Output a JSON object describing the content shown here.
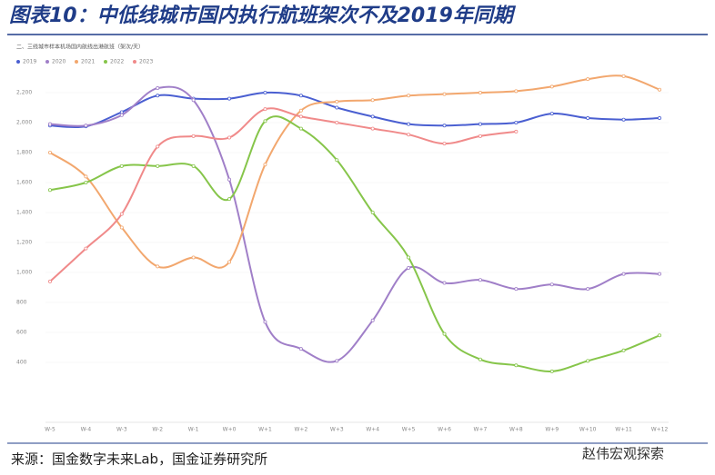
{
  "header": {
    "title": "图表10：中低线城市国内执行航班架次不及2019年同期"
  },
  "chart_data": {
    "type": "line",
    "title": "二、三线城市样本机场国内航线出港航班（架次/天）",
    "categories": [
      "W-5",
      "W-4",
      "W-3",
      "W-2",
      "W-1",
      "W+0",
      "W+1",
      "W+2",
      "W+3",
      "W+4",
      "W+5",
      "W+6",
      "W+7",
      "W+8",
      "W+9",
      "W+10",
      "W+11",
      "W+12"
    ],
    "series": [
      {
        "name": "2019",
        "color": "#4a5fd1",
        "values": [
          1980,
          1975,
          2070,
          2180,
          2160,
          2160,
          2200,
          2180,
          2100,
          2040,
          1990,
          1980,
          1990,
          2000,
          2060,
          2030,
          2020,
          2030
        ]
      },
      {
        "name": "2020",
        "color": "#a07fc8",
        "values": [
          1990,
          1980,
          2050,
          2230,
          2150,
          1620,
          670,
          490,
          410,
          680,
          1030,
          930,
          950,
          890,
          920,
          890,
          990,
          990
        ]
      },
      {
        "name": "2021",
        "color": "#f2a76e",
        "values": [
          1800,
          1640,
          1300,
          1040,
          1100,
          1070,
          1720,
          2080,
          2140,
          2150,
          2180,
          2190,
          2200,
          2210,
          2240,
          2290,
          2310,
          2220
        ]
      },
      {
        "name": "2022",
        "color": "#86c54a",
        "values": [
          1550,
          1600,
          1710,
          1710,
          1710,
          1490,
          2010,
          1960,
          1750,
          1400,
          1100,
          590,
          420,
          380,
          340,
          410,
          480,
          580
        ]
      },
      {
        "name": "2023",
        "color": "#f08a8a",
        "values": [
          940,
          1160,
          1390,
          1840,
          1910,
          1900,
          2090,
          2040,
          2000,
          1960,
          1920,
          1860,
          1910,
          1940,
          null,
          null,
          null,
          null
        ]
      }
    ],
    "ylim": [
      0,
      2400
    ],
    "yticks": [
      {
        "value": 400,
        "label": "400"
      },
      {
        "value": 600,
        "label": "600"
      },
      {
        "value": 800,
        "label": "800"
      },
      {
        "value": 1000,
        "label": "1,000"
      },
      {
        "value": 1200,
        "label": "1,200"
      },
      {
        "value": 1400,
        "label": "1,400"
      },
      {
        "value": 1600,
        "label": "1,600"
      },
      {
        "value": 1800,
        "label": "1,800"
      },
      {
        "value": 2000,
        "label": "2,000"
      },
      {
        "value": 2200,
        "label": "2,200"
      }
    ],
    "grid": true
  },
  "footer": {
    "source": "来源：国金数字未来Lab，国金证券研究所",
    "watermark": "赵伟宏观探索"
  }
}
